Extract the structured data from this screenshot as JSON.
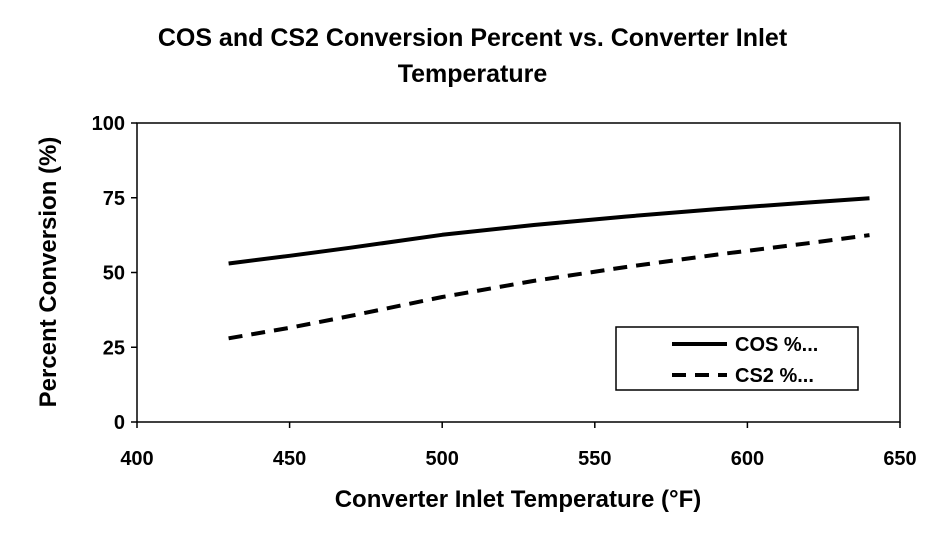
{
  "chart_data": {
    "type": "line",
    "title_line1": "COS  and CS2 Conversion Percent  vs. Converter Inlet",
    "title_line2": "Temperature",
    "xlabel": "Converter Inlet Temperature (°F)",
    "ylabel": "Percent Conversion (%)",
    "xlim": [
      400,
      650
    ],
    "ylim": [
      0,
      100
    ],
    "xticks": [
      "400",
      "450",
      "500",
      "550",
      "600",
      "650"
    ],
    "yticks": [
      "0",
      "25",
      "50",
      "75",
      "100"
    ],
    "grid": false,
    "legend_position": "bottom-right",
    "series": [
      {
        "name": "COS %...",
        "style": "solid",
        "x": [
          430,
          450,
          470,
          500,
          530,
          560,
          590,
          620,
          640
        ],
        "y": [
          53,
          55.6,
          58.3,
          62.6,
          65.9,
          68.7,
          71.2,
          73.4,
          74.8
        ]
      },
      {
        "name": "CS2 %...",
        "style": "dashed",
        "x": [
          430,
          450,
          470,
          500,
          530,
          560,
          590,
          620,
          640
        ],
        "y": [
          28,
          31.5,
          35.5,
          41.8,
          47.2,
          51.8,
          56.0,
          59.8,
          62.5
        ]
      }
    ]
  }
}
